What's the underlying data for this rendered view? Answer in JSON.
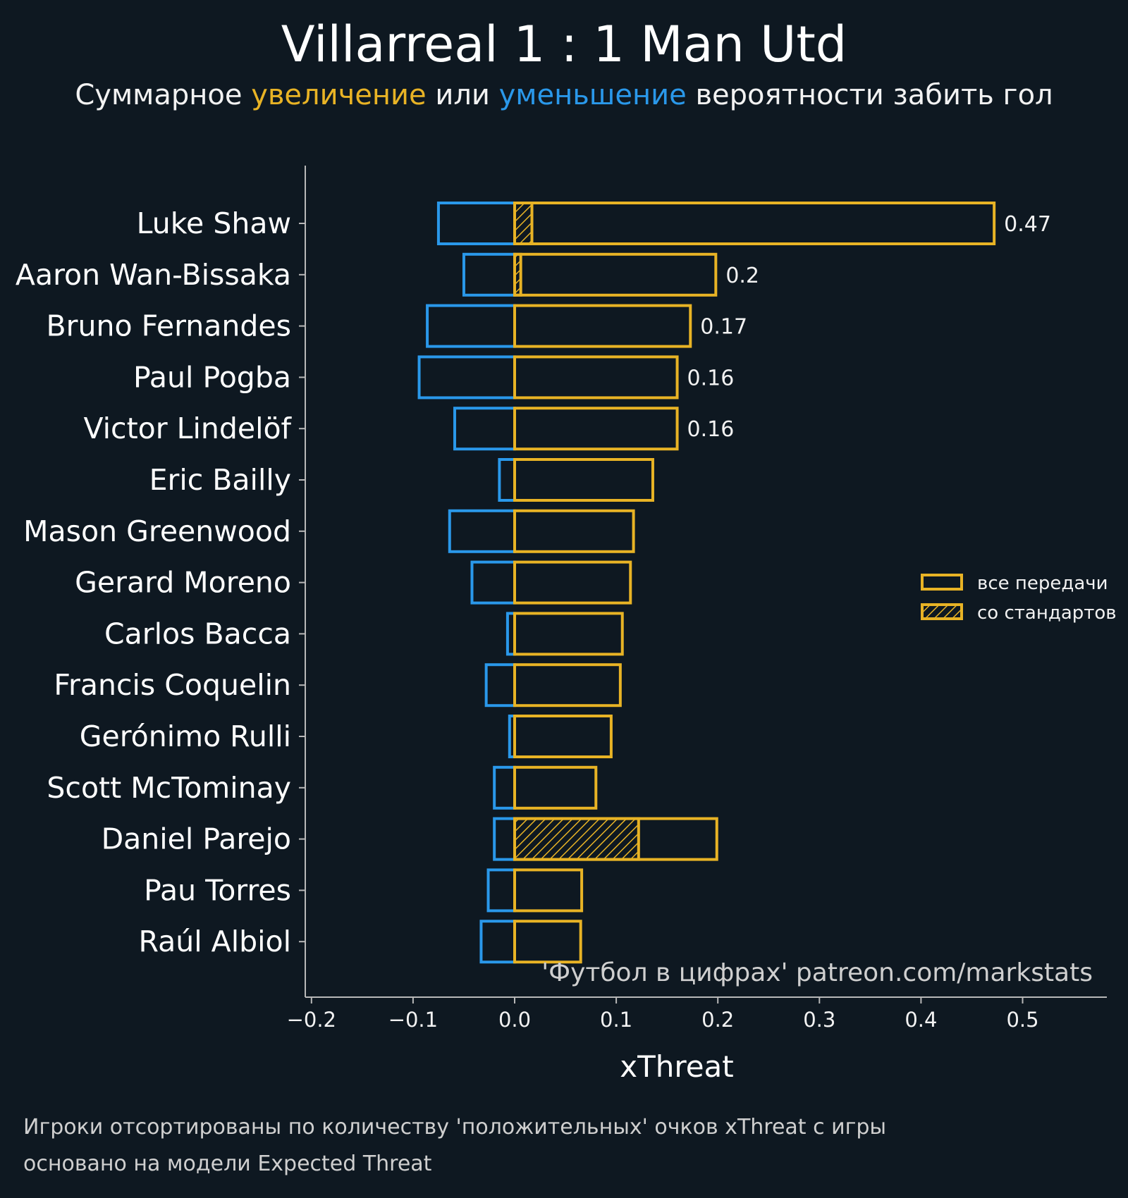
{
  "title": "Villarreal 1 : 1 Man Utd",
  "subtitle": {
    "part1": "Суммарное ",
    "highlight_positive": "увеличение",
    "part2": " или ",
    "highlight_negative": "уменьшение",
    "part3": " вероятности забить гол"
  },
  "colors": {
    "background": "#0e1821",
    "positive": "#e8b325",
    "negative": "#2a98ea",
    "axis": "#b8b8b8",
    "text": "#f2f2f2"
  },
  "chart_data": {
    "type": "bar",
    "orientation": "horizontal",
    "xlabel": "xThreat",
    "xlim": [
      -0.2,
      0.58
    ],
    "xticks": [
      -0.2,
      -0.1,
      0.0,
      0.1,
      0.2,
      0.3,
      0.4,
      0.5
    ],
    "xtick_labels": [
      "−0.2",
      "−0.1",
      "0.0",
      "0.1",
      "0.2",
      "0.3",
      "0.4",
      "0.5"
    ],
    "categories": [
      "Luke Shaw",
      "Aaron Wan-Bissaka",
      "Bruno Fernandes",
      "Paul Pogba",
      "Victor Lindelöf",
      "Eric Bailly",
      "Mason Greenwood",
      "Gerard Moreno",
      "Carlos Bacca",
      "Francis Coquelin",
      "Gerónimo Rulli",
      "Scott McTominay",
      "Daniel Parejo",
      "Pau Torres",
      "Raúl Albiol"
    ],
    "series": [
      {
        "name": "positive",
        "values": [
          0.472,
          0.198,
          0.173,
          0.16,
          0.16,
          0.136,
          0.117,
          0.114,
          0.106,
          0.104,
          0.095,
          0.08,
          0.199,
          0.066,
          0.065
        ]
      },
      {
        "name": "negative",
        "values": [
          -0.075,
          -0.05,
          -0.086,
          -0.094,
          -0.059,
          -0.015,
          -0.064,
          -0.042,
          -0.007,
          -0.028,
          -0.005,
          -0.02,
          -0.02,
          -0.026,
          -0.033
        ]
      },
      {
        "name": "set_pieces",
        "values": [
          0.017,
          0.006,
          0,
          0,
          0,
          0,
          0,
          0,
          0,
          0,
          0,
          0,
          0.122,
          0,
          0
        ]
      }
    ],
    "value_labels": [
      "0.47",
      "0.2",
      "0.17",
      "0.16",
      "0.16",
      "",
      "",
      "",
      "",
      "",
      "",
      "",
      "",
      "",
      ""
    ],
    "legend": {
      "position": "right",
      "items": [
        {
          "label": "все передачи",
          "style": "outline"
        },
        {
          "label": "со стандартов",
          "style": "hatched"
        }
      ]
    },
    "watermark": "'Футбол в цифрах' patreon.com/markstats"
  },
  "footnotes": {
    "line1": "Игроки отсортированы по количеству 'положительных' очков xThreat с игры",
    "line2": "основано на модели Expected Threat"
  }
}
